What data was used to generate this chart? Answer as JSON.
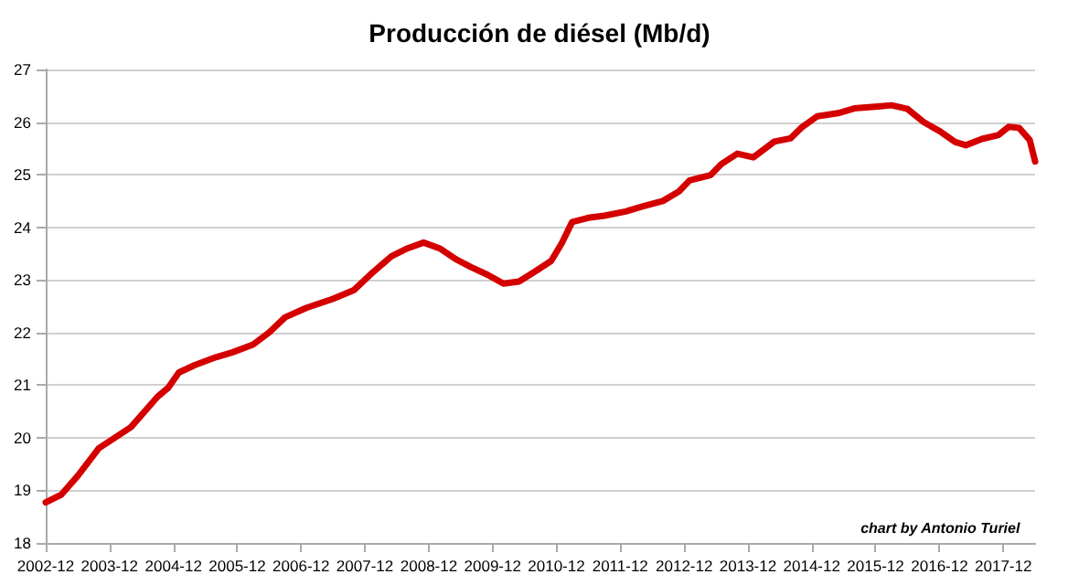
{
  "chart_data": {
    "type": "line",
    "title": "Producción de diésel (Mb/d)",
    "x": [
      "2002-12",
      "2003-03",
      "2003-06",
      "2003-10",
      "2004-04",
      "2004-06",
      "2004-09",
      "2004-11",
      "2005-01",
      "2005-04",
      "2005-08",
      "2005-11",
      "2006-03",
      "2006-06",
      "2006-09",
      "2007-01",
      "2007-06",
      "2007-10",
      "2008-01",
      "2008-05",
      "2008-08",
      "2008-11",
      "2009-02",
      "2009-05",
      "2009-08",
      "2009-11",
      "2010-02",
      "2010-05",
      "2010-08",
      "2010-11",
      "2011-01",
      "2011-03",
      "2011-06",
      "2011-09",
      "2012-01",
      "2012-04",
      "2012-08",
      "2012-11",
      "2013-01",
      "2013-05",
      "2013-07",
      "2013-10",
      "2014-01",
      "2014-05",
      "2014-08",
      "2014-10",
      "2015-01",
      "2015-05",
      "2015-08",
      "2016-01",
      "2016-03",
      "2016-06",
      "2016-09",
      "2016-12",
      "2017-03",
      "2017-05",
      "2017-08",
      "2017-11",
      "2018-01",
      "2018-03",
      "2018-05",
      "2018-06"
    ],
    "series": [
      {
        "color": "#d40000",
        "values": [
          18.77,
          18.92,
          19.27,
          19.8,
          20.2,
          20.43,
          20.78,
          20.95,
          21.24,
          21.38,
          21.53,
          21.62,
          21.77,
          22.0,
          22.29,
          22.47,
          22.64,
          22.81,
          23.1,
          23.45,
          23.6,
          23.71,
          23.6,
          23.4,
          23.24,
          23.1,
          22.93,
          22.97,
          23.16,
          23.36,
          23.7,
          24.1,
          24.18,
          24.22,
          24.3,
          24.39,
          24.5,
          24.68,
          24.89,
          24.99,
          25.2,
          25.4,
          25.33,
          25.63,
          25.69,
          25.89,
          26.11,
          26.17,
          26.26,
          26.3,
          26.32,
          26.25,
          26.0,
          25.83,
          25.62,
          25.56,
          25.68,
          25.75,
          25.91,
          25.89,
          25.66,
          25.25
        ]
      }
    ],
    "xlim": [
      "2002-12",
      "2018-06"
    ],
    "xticks": [
      "2002-12",
      "2003-12",
      "2004-12",
      "2005-12",
      "2006-12",
      "2007-12",
      "2008-12",
      "2009-12",
      "2010-12",
      "2011-12",
      "2012-12",
      "2013-12",
      "2014-12",
      "2015-12",
      "2016-12",
      "2017-12"
    ],
    "ylim": [
      18,
      27
    ],
    "yticks": [
      18,
      19,
      20,
      21,
      22,
      23,
      24,
      25,
      26,
      27
    ],
    "grid": "y",
    "marker": "none",
    "line_style": "solid",
    "annotations": [
      "chart by Antonio Turiel"
    ]
  }
}
